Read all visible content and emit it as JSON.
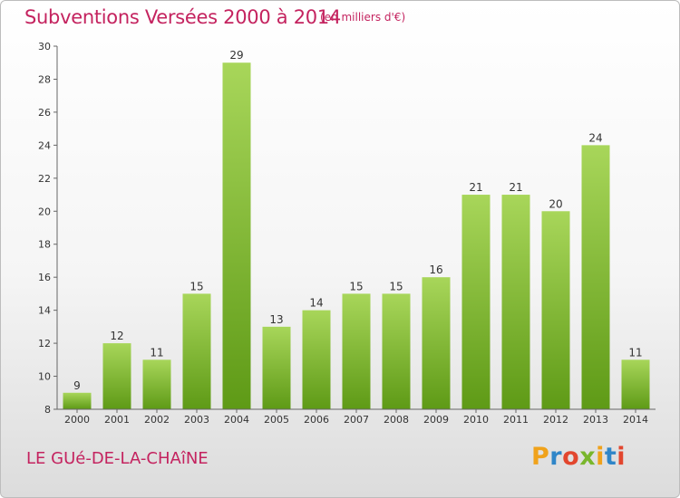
{
  "header": {
    "title": "Subventions Versées 2000 à 2014",
    "subtitle": "(en milliers d'€)"
  },
  "footer": {
    "commune": "LE GUé-DE-LA-CHAîNE",
    "logo": {
      "text": "Proxiti",
      "letters": [
        {
          "t": "P",
          "color": "#f0a21b"
        },
        {
          "t": "r",
          "color": "#2f86c8"
        },
        {
          "t": "o",
          "color": "#e2462e"
        },
        {
          "t": "x",
          "color": "#79b62c"
        },
        {
          "t": "i",
          "color": "#f0a21b"
        },
        {
          "t": "t",
          "color": "#2f86c8"
        },
        {
          "t": "i",
          "color": "#e2462e"
        }
      ]
    }
  },
  "chart_data": {
    "type": "bar",
    "title": "Subventions Versées 2000 à 2014",
    "subtitle": "(en milliers d'€)",
    "categories": [
      "2000",
      "2001",
      "2002",
      "2003",
      "2004",
      "2005",
      "2006",
      "2007",
      "2008",
      "2009",
      "2010",
      "2011",
      "2012",
      "2013",
      "2014"
    ],
    "values": [
      9,
      12,
      11,
      15,
      29,
      13,
      14,
      15,
      15,
      16,
      21,
      21,
      20,
      24,
      11
    ],
    "ylim": [
      8,
      30
    ],
    "yticks": [
      8,
      10,
      12,
      14,
      16,
      18,
      20,
      22,
      24,
      26,
      28,
      30
    ],
    "xlabel": "",
    "ylabel": "",
    "grid": false,
    "colors": {
      "bar_top": "#a8d65a",
      "bar_bottom": "#5e9a16",
      "axis": "#666666",
      "text": "#333333",
      "accent": "#c4235f"
    }
  }
}
